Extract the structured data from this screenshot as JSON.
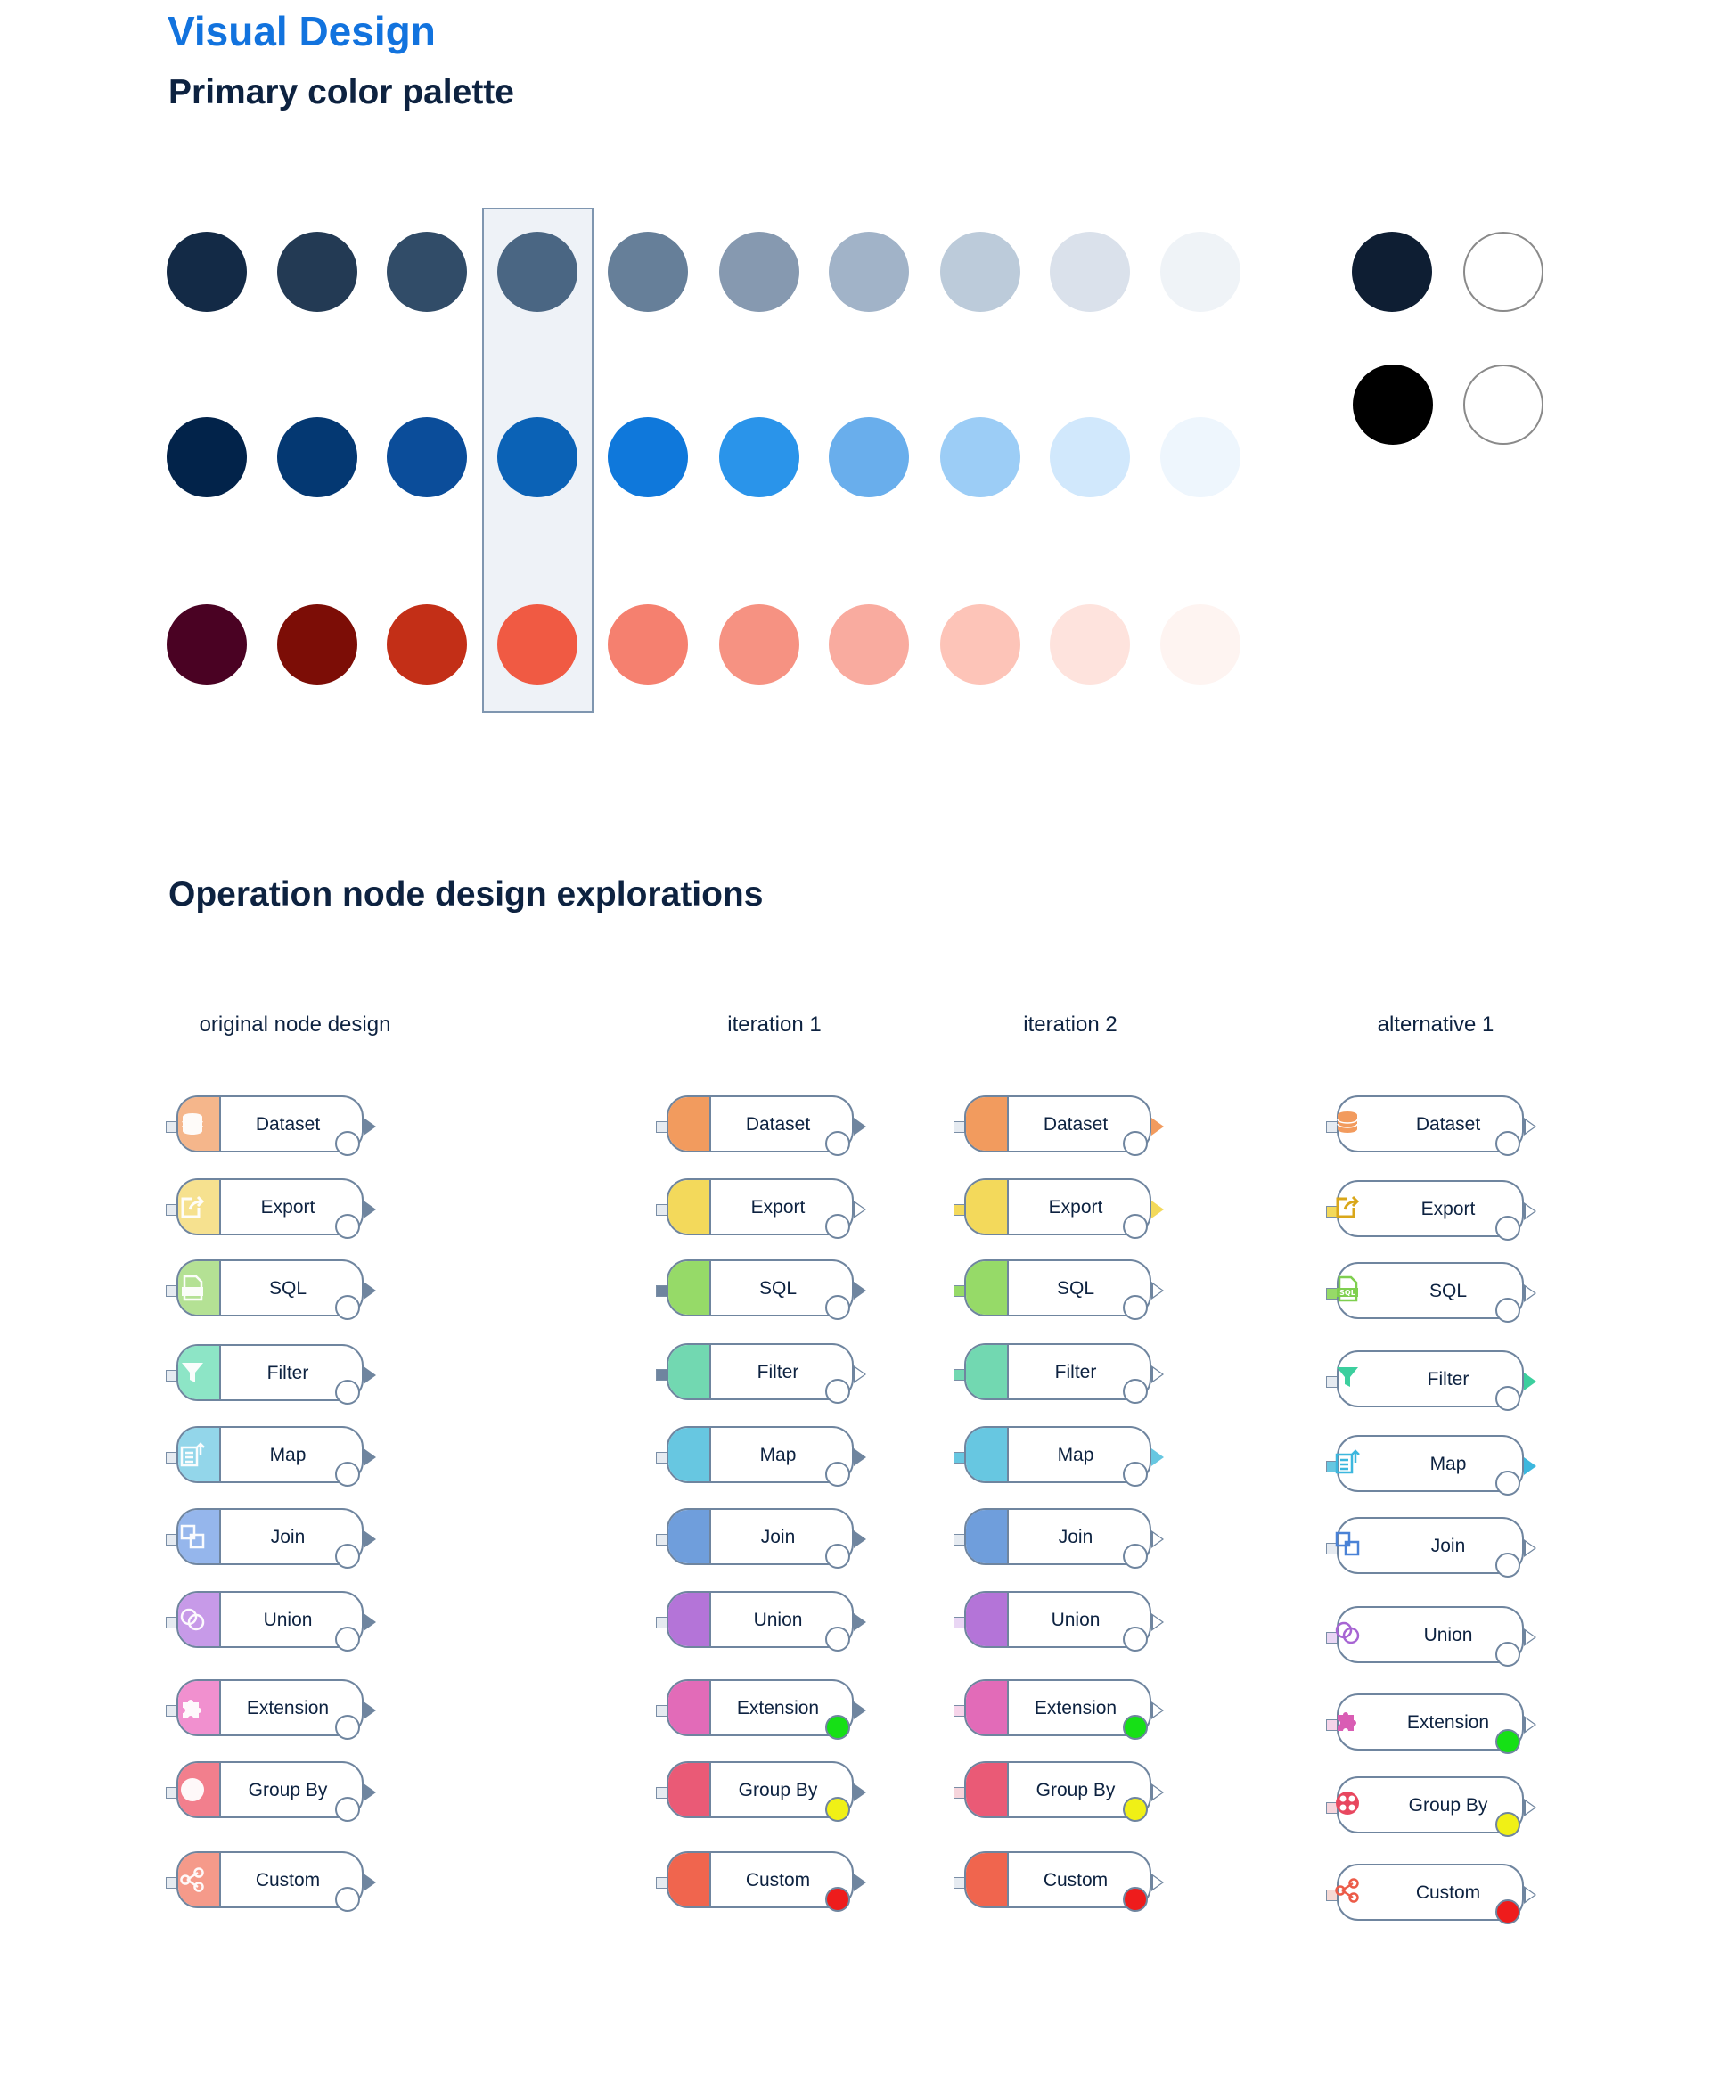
{
  "header": {
    "title": "Visual Design",
    "palette_title": "Primary color palette",
    "nodes_title": "Operation node design explorations"
  },
  "palette": {
    "rows": [
      [
        "#132a46",
        "#233a54",
        "#314c68",
        "#4a6683",
        "#667f99",
        "#8699b0",
        "#a1b3c8",
        "#bccbda",
        "#dae1eb",
        "#eff3f7"
      ],
      [
        "#02234a",
        "#043872",
        "#0b4d9a",
        "#0b62b6",
        "#0f78db",
        "#2a94ea",
        "#69aeec",
        "#9ccdf6",
        "#d1e8fc",
        "#eef6fd"
      ],
      [
        "#4a0223",
        "#7c0d06",
        "#c32f17",
        "#f05a43",
        "#f5806f",
        "#f69282",
        "#f9ab9f",
        "#fdc4b8",
        "#fee3dd",
        "#fef4f1"
      ]
    ],
    "neutrals": [
      "#0e1e33",
      "#ffffff",
      "#000000",
      "#ffffff"
    ]
  },
  "columns": [
    {
      "heading": "original node design",
      "style": "original",
      "nodes": [
        {
          "label": "Dataset",
          "color": "#f5b68b",
          "icon": "database-icon"
        },
        {
          "label": "Export",
          "color": "#f6e18f",
          "icon": "export-icon"
        },
        {
          "label": "SQL",
          "color": "#b4e194",
          "icon": "sql-file-icon"
        },
        {
          "label": "Filter",
          "color": "#8de5c6",
          "icon": "filter-icon"
        },
        {
          "label": "Map",
          "color": "#93d6ea",
          "icon": "map-icon"
        },
        {
          "label": "Join",
          "color": "#95b6ec",
          "icon": "join-icon"
        },
        {
          "label": "Union",
          "color": "#c79ae8",
          "icon": "union-icon"
        },
        {
          "label": "Extension",
          "color": "#f190cf",
          "icon": "puzzle-icon"
        },
        {
          "label": "Group By",
          "color": "#f27f8d",
          "icon": "group-by-icon"
        },
        {
          "label": "Custom",
          "color": "#f59a8a",
          "icon": "share-nodes-icon"
        }
      ]
    },
    {
      "heading": "iteration 1",
      "style": "iteration1",
      "nodes": [
        {
          "label": "Dataset",
          "color": "#f29b5e",
          "status": "#ffffff",
          "port": "#e6ebf1",
          "arrow": "#6f859f"
        },
        {
          "label": "Export",
          "color": "#f3d95b",
          "status": "#ffffff",
          "port": "#e6ebf1",
          "arrow": "hollow"
        },
        {
          "label": "SQL",
          "color": "#96da68",
          "status": "#ffffff",
          "port": "#6f859f",
          "arrow": "#6f859f"
        },
        {
          "label": "Filter",
          "color": "#72d8b1",
          "status": "#ffffff",
          "port": "#6f859f",
          "arrow": "hollow"
        },
        {
          "label": "Map",
          "color": "#67c7e1",
          "status": "#ffffff",
          "port": "#e6ebf1",
          "arrow": "#6f859f"
        },
        {
          "label": "Join",
          "color": "#6f9edc",
          "status": "#ffffff",
          "port": "#e6ebf1",
          "arrow": "#6f859f"
        },
        {
          "label": "Union",
          "color": "#b474d8",
          "status": "#ffffff",
          "port": "#e6ebf1",
          "arrow": "#6f859f"
        },
        {
          "label": "Extension",
          "color": "#e26bb8",
          "status": "#16e016",
          "port": "#e6ebf1",
          "arrow": "#6f859f"
        },
        {
          "label": "Group By",
          "color": "#ea5a76",
          "status": "#f0f016",
          "port": "#e6ebf1",
          "arrow": "#6f859f"
        },
        {
          "label": "Custom",
          "color": "#f0654e",
          "status": "#ee1c1c",
          "port": "#e6ebf1",
          "arrow": "#6f859f"
        }
      ]
    },
    {
      "heading": "iteration 2",
      "style": "iteration2",
      "nodes": [
        {
          "label": "Dataset",
          "color": "#f29b5e",
          "status": "#ffffff",
          "port": "#e6ebf1",
          "arrow": "#f29b5e"
        },
        {
          "label": "Export",
          "color": "#f3d95b",
          "status": "#ffffff",
          "port": "#f3d95b",
          "arrow": "#f3d95b"
        },
        {
          "label": "SQL",
          "color": "#96da68",
          "status": "#ffffff",
          "port": "#96da68",
          "arrow": "hollow"
        },
        {
          "label": "Filter",
          "color": "#72d8b1",
          "status": "#ffffff",
          "port": "#72d8b1",
          "arrow": "hollow"
        },
        {
          "label": "Map",
          "color": "#67c7e1",
          "status": "#ffffff",
          "port": "#67c7e1",
          "arrow": "#67c7e1"
        },
        {
          "label": "Join",
          "color": "#6f9edc",
          "status": "#ffffff",
          "port": "#e6ebf1",
          "arrow": "hollow"
        },
        {
          "label": "Union",
          "color": "#b474d8",
          "status": "#ffffff",
          "port": "#e9d6f4",
          "arrow": "hollow"
        },
        {
          "label": "Extension",
          "color": "#e26bb8",
          "status": "#16e016",
          "port": "#f6d5ea",
          "arrow": "hollow"
        },
        {
          "label": "Group By",
          "color": "#ea5a76",
          "status": "#f0f016",
          "port": "#f6d5dc",
          "arrow": "hollow"
        },
        {
          "label": "Custom",
          "color": "#f0654e",
          "status": "#ee1c1c",
          "port": "#e6ebf1",
          "arrow": "hollow"
        }
      ]
    },
    {
      "heading": "alternative 1",
      "style": "alt",
      "nodes": [
        {
          "label": "Dataset",
          "color": "#f29b5e",
          "icon": "database-icon",
          "status": "#ffffff",
          "port": "#e6ebf1",
          "arrow": "hollow"
        },
        {
          "label": "Export",
          "color": "#d9a71a",
          "icon": "export-icon",
          "status": "#ffffff",
          "port": "#f3d95b",
          "arrow": "hollow"
        },
        {
          "label": "SQL",
          "color": "#7fcf4f",
          "icon": "sql-file-icon",
          "status": "#ffffff",
          "port": "#96da68",
          "arrow": "hollow"
        },
        {
          "label": "Filter",
          "color": "#3ccf9e",
          "icon": "filter-icon",
          "status": "#ffffff",
          "port": "#e6ebf1",
          "arrow": "#3ccf9e"
        },
        {
          "label": "Map",
          "color": "#3cb7de",
          "icon": "map-icon",
          "status": "#ffffff",
          "port": "#67c7e1",
          "arrow": "#3cb7de"
        },
        {
          "label": "Join",
          "color": "#4a82d6",
          "icon": "join-icon",
          "status": "#ffffff",
          "port": "#e6ebf1",
          "arrow": "hollow"
        },
        {
          "label": "Union",
          "color": "#a765d3",
          "icon": "union-icon",
          "status": "#ffffff",
          "port": "#e9d6f4",
          "arrow": "hollow"
        },
        {
          "label": "Extension",
          "color": "#d95db4",
          "icon": "puzzle-icon",
          "status": "#16e016",
          "port": "#f6d5ea",
          "arrow": "hollow"
        },
        {
          "label": "Group By",
          "color": "#e8475f",
          "icon": "group-by-icon",
          "status": "#f0f016",
          "port": "#f6d5dc",
          "arrow": "hollow"
        },
        {
          "label": "Custom",
          "color": "#ec5b48",
          "icon": "share-nodes-icon",
          "status": "#ee1c1c",
          "port": "#f6d9d5",
          "arrow": "hollow"
        }
      ]
    }
  ]
}
